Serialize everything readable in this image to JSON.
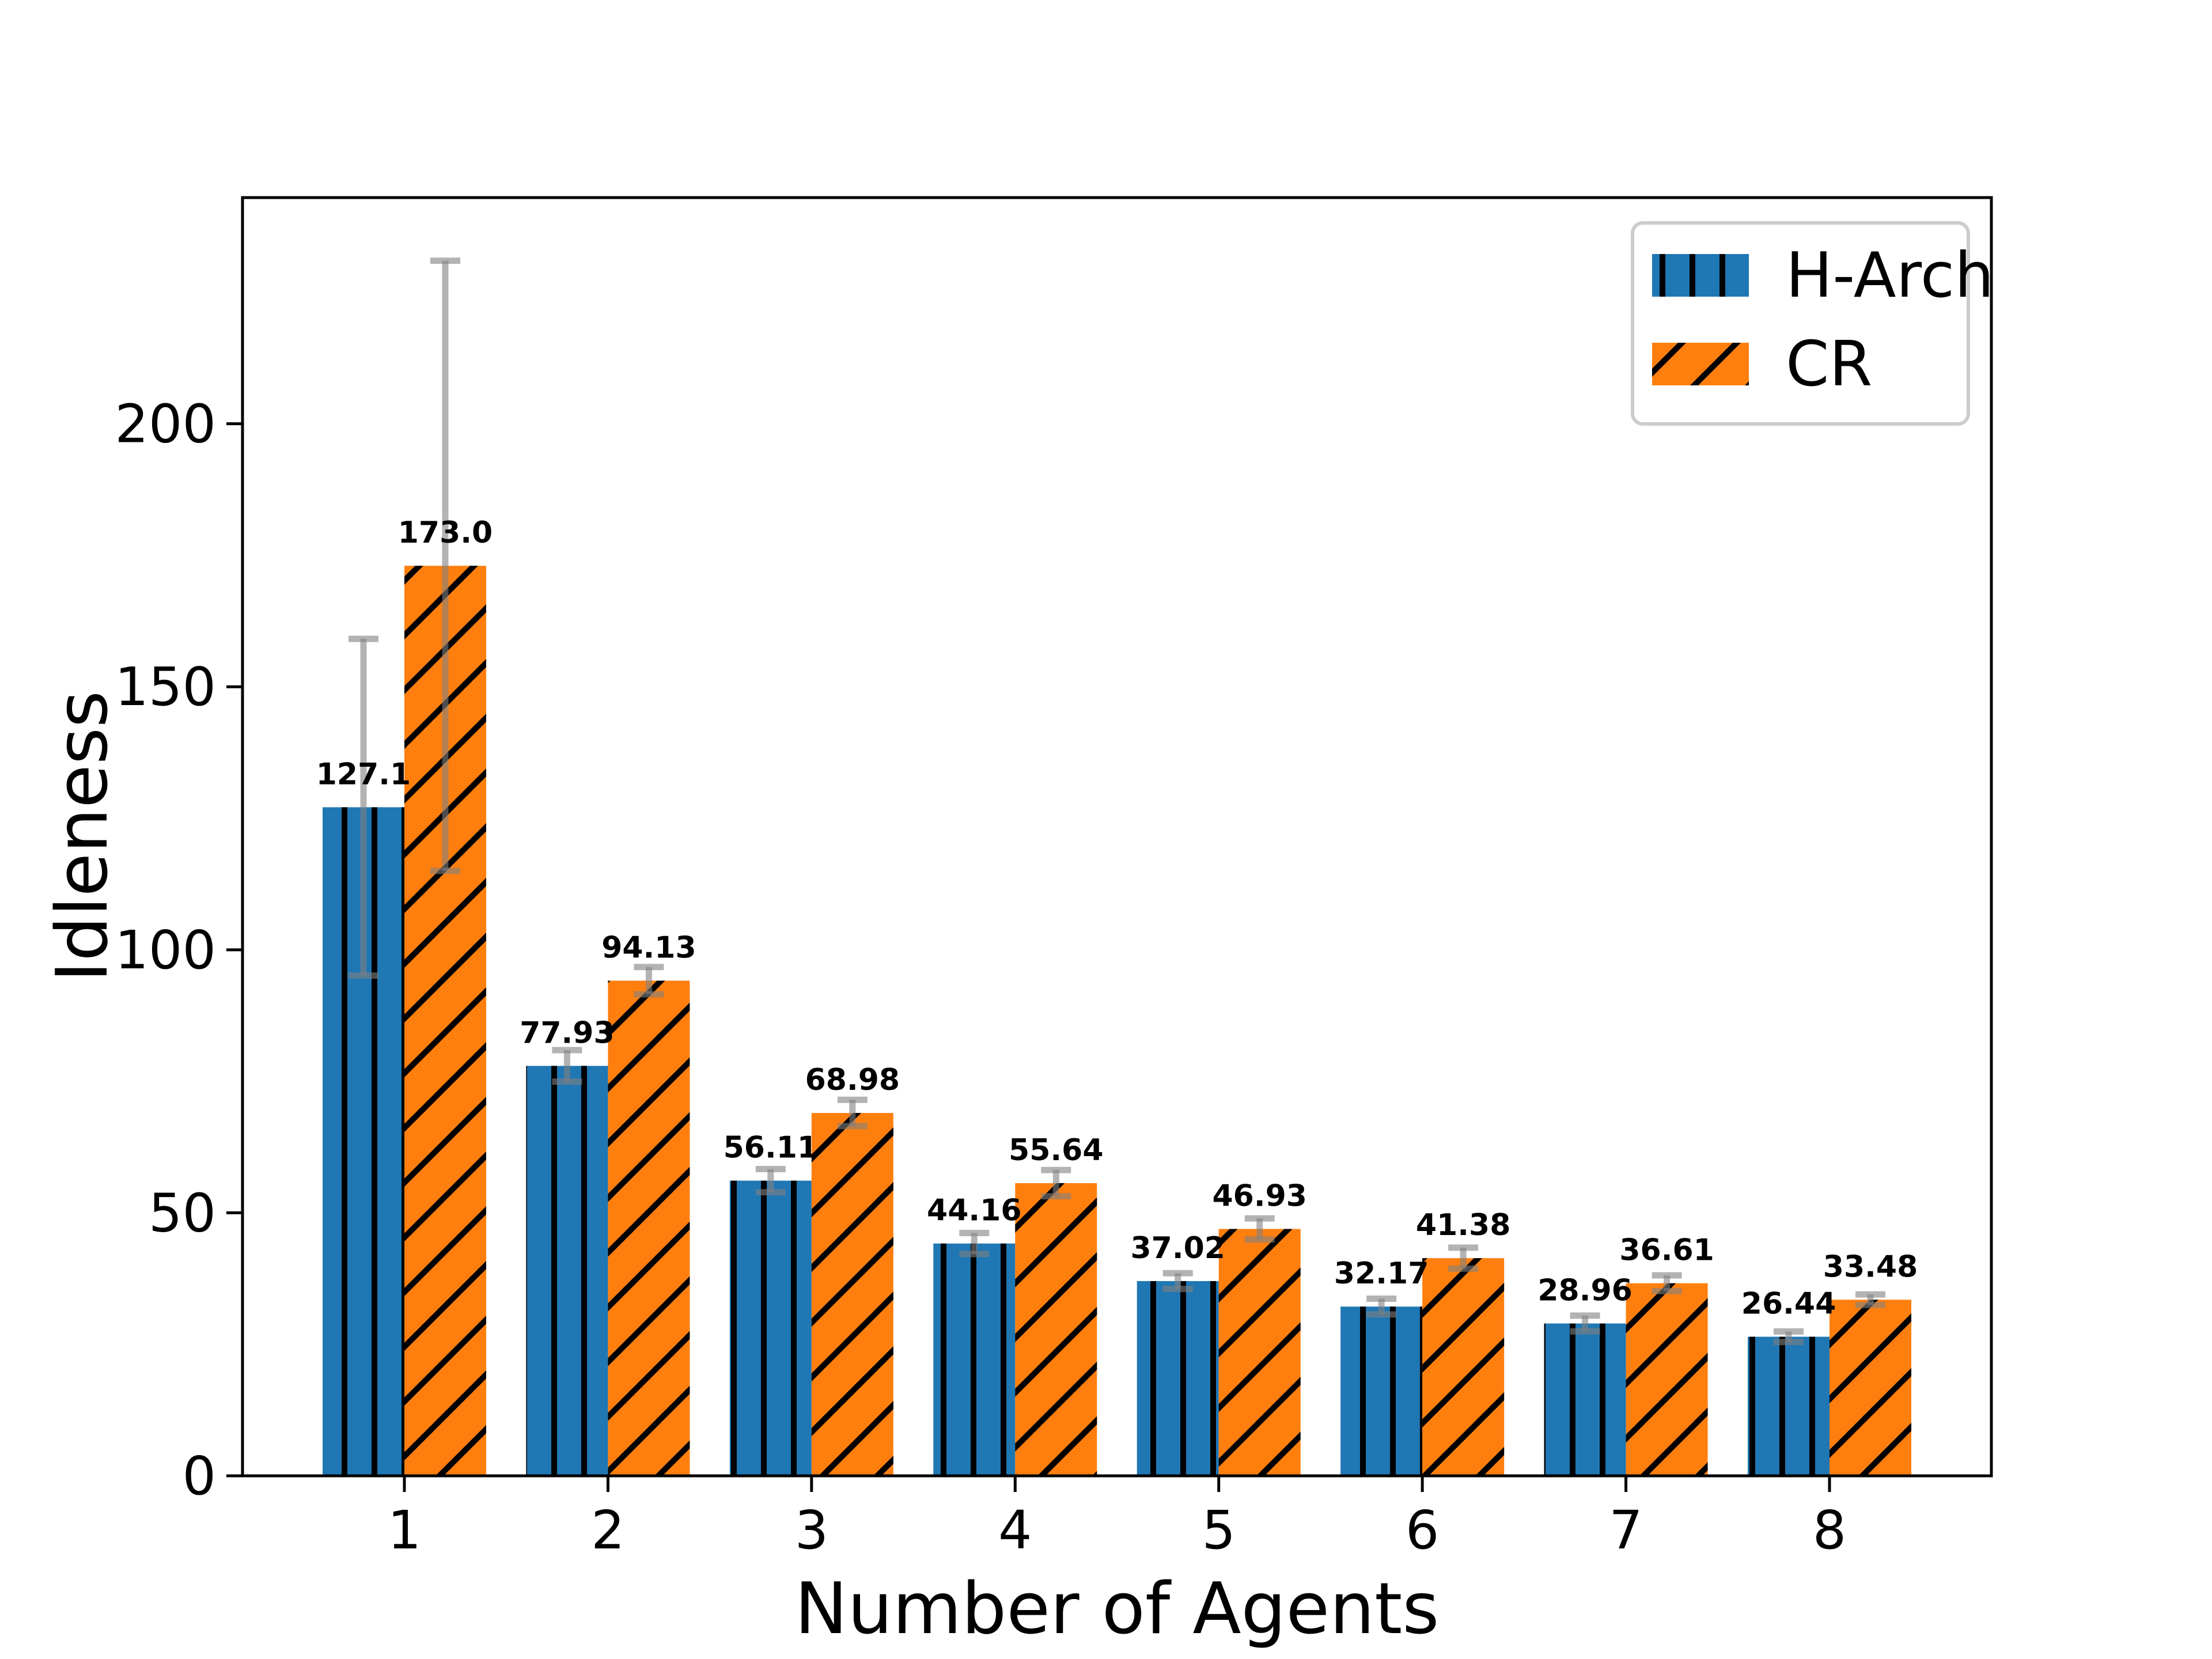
{
  "chart_data": {
    "type": "bar",
    "title": "",
    "xlabel": "Number of Agents",
    "ylabel": "Idleness",
    "categories": [
      "1",
      "2",
      "3",
      "4",
      "5",
      "6",
      "7",
      "8"
    ],
    "yticks": [
      "0",
      "50",
      "100",
      "150",
      "200"
    ],
    "ytick_values": [
      0,
      50,
      100,
      150,
      200
    ],
    "ylim": [
      0,
      243
    ],
    "grid": false,
    "legend_position": "upper right",
    "background_color": "#ffffff",
    "axis_color": "#000000",
    "error_bar_color": "rgba(128,128,128,0.6)",
    "hatch_color": "#000000",
    "series": [
      {
        "name": "H-Arch",
        "color": "#1f77b4",
        "hatch": "vertical-lines",
        "values": [
          127.1,
          77.93,
          56.11,
          44.16,
          37.02,
          32.17,
          28.96,
          26.44
        ],
        "labels": [
          "127.1",
          "77.93",
          "56.11",
          "44.16",
          "37.02",
          "32.17",
          "28.96",
          "26.44"
        ],
        "errors": [
          32,
          3,
          2.2,
          2,
          1.5,
          1.5,
          1.5,
          1
        ]
      },
      {
        "name": "CR",
        "color": "#ff7f0e",
        "hatch": "diagonal-lines",
        "values": [
          173.0,
          94.13,
          68.98,
          55.64,
          46.93,
          41.38,
          36.61,
          33.48
        ],
        "labels": [
          "173.0",
          "94.13",
          "68.98",
          "55.64",
          "46.93",
          "41.38",
          "36.61",
          "33.48"
        ],
        "errors": [
          58,
          2.6,
          2.5,
          2.5,
          2,
          2,
          1.5,
          1
        ]
      }
    ]
  }
}
